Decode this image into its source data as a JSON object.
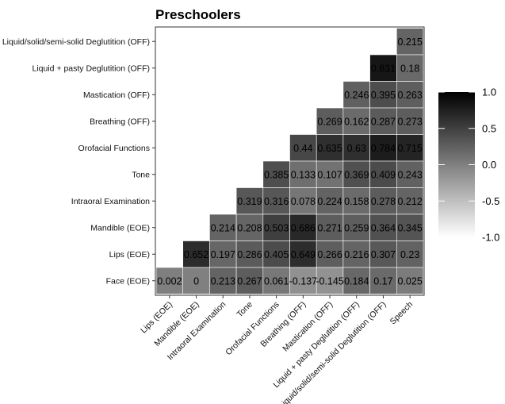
{
  "chart_data": {
    "type": "heatmap",
    "title": "Preschoolers",
    "x_categories": [
      "Lips (EOE)",
      "Mandible (EOE)",
      "Intraoral Examination",
      "Tone",
      "Orofacial Functions",
      "Breathing (OFF)",
      "Mastication (OFF)",
      "Liquid + pasty Deglutition (OFF)",
      "Liquid/solid/semi-solid Deglutition (OFF)",
      "Speech"
    ],
    "y_categories": [
      "Liquid/solid/semi-solid Deglutition (OFF)",
      "Liquid + pasty Deglutition (OFF)",
      "Mastication (OFF)",
      "Breathing (OFF)",
      "Orofacial Functions",
      "Tone",
      "Intraoral Examination",
      "Mandible (EOE)",
      "Lips (EOE)",
      "Face (EOE)"
    ],
    "cells": [
      [
        null,
        null,
        null,
        null,
        null,
        null,
        null,
        null,
        null,
        0.215
      ],
      [
        null,
        null,
        null,
        null,
        null,
        null,
        null,
        null,
        0.831,
        0.18
      ],
      [
        null,
        null,
        null,
        null,
        null,
        null,
        null,
        0.246,
        0.395,
        0.263
      ],
      [
        null,
        null,
        null,
        null,
        null,
        null,
        0.269,
        0.162,
        0.287,
        0.273
      ],
      [
        null,
        null,
        null,
        null,
        null,
        0.44,
        0.635,
        0.63,
        0.784,
        0.715
      ],
      [
        null,
        null,
        null,
        null,
        0.385,
        0.133,
        0.107,
        0.369,
        0.409,
        0.243
      ],
      [
        null,
        null,
        null,
        0.319,
        0.316,
        0.078,
        0.224,
        0.158,
        0.278,
        0.212
      ],
      [
        null,
        null,
        0.214,
        0.208,
        0.503,
        0.686,
        0.271,
        0.259,
        0.364,
        0.345
      ],
      [
        null,
        0.652,
        0.197,
        0.286,
        0.405,
        0.649,
        0.266,
        0.216,
        0.307,
        0.23
      ],
      [
        0.002,
        0,
        0.213,
        0.267,
        0.061,
        -0.137,
        -0.145,
        0.184,
        0.17,
        0.025
      ]
    ],
    "cell_labels": [
      [
        null,
        null,
        null,
        null,
        null,
        null,
        null,
        null,
        null,
        "0.215"
      ],
      [
        null,
        null,
        null,
        null,
        null,
        null,
        null,
        null,
        "0.831",
        "0.18"
      ],
      [
        null,
        null,
        null,
        null,
        null,
        null,
        null,
        "0.246",
        "0.395",
        "0.263"
      ],
      [
        null,
        null,
        null,
        null,
        null,
        null,
        "0.269",
        "0.162",
        "0.287",
        "0.273"
      ],
      [
        null,
        null,
        null,
        null,
        null,
        "0.44",
        "0.635",
        "0.63",
        "0.784",
        "0.715"
      ],
      [
        null,
        null,
        null,
        null,
        "0.385",
        "0.133",
        "0.107",
        "0.369",
        "0.409",
        "0.243"
      ],
      [
        null,
        null,
        null,
        "0.319",
        "0.316",
        "0.078",
        "0.224",
        "0.158",
        "0.278",
        "0.212"
      ],
      [
        null,
        null,
        "0.214",
        "0.208",
        "0.503",
        "0.686",
        "0.271",
        "0.259",
        "0.364",
        "0.345"
      ],
      [
        null,
        "0.652",
        "0.197",
        "0.286",
        "0.405",
        "0.649",
        "0.266",
        "0.216",
        "0.307",
        "0.23"
      ],
      [
        "0.002",
        "0",
        "0.213",
        "0.267",
        "0.061",
        "-0.137",
        "-0.145",
        "0.184",
        "0.17",
        "0.025"
      ]
    ],
    "color_scale": {
      "min": -1,
      "max": 1,
      "low_color": "#ffffff",
      "high_color": "#000000",
      "ticks": [
        1.0,
        0.5,
        0.0,
        -0.5,
        -1.0
      ],
      "tick_labels": [
        "1.0",
        "0.5",
        "0.0",
        "-0.5",
        "-1.0"
      ]
    },
    "legend_position": "right",
    "grid": false
  }
}
